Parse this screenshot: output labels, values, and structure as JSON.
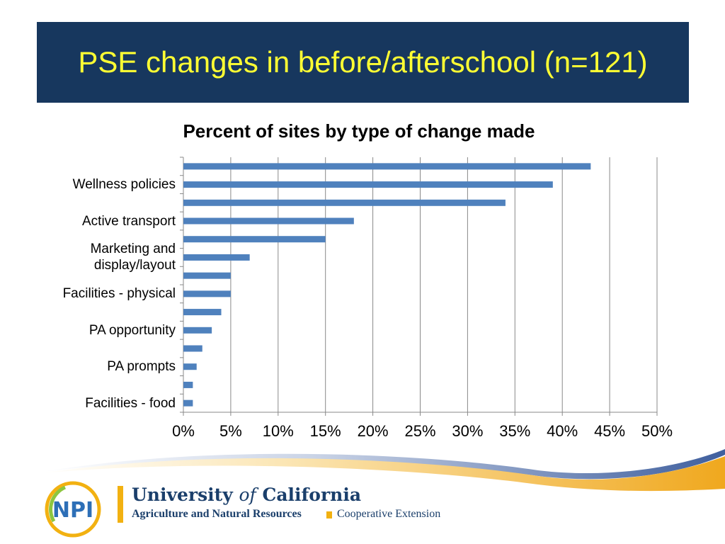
{
  "slide": {
    "title": "PSE changes in before/afterschool (n=121)"
  },
  "chart_data": {
    "type": "bar",
    "orientation": "horizontal",
    "title": "Percent of sites by type of change made",
    "xlabel": "",
    "ylabel": "",
    "xlim": [
      0,
      50
    ],
    "x_ticks": [
      "0%",
      "5%",
      "10%",
      "15%",
      "20%",
      "25%",
      "30%",
      "35%",
      "40%",
      "45%",
      "50%"
    ],
    "grid": true,
    "categories": [
      "",
      "Wellness policies",
      "",
      "Active transport",
      "",
      "Marketing and display/layout",
      "",
      "Facilities - physical",
      "",
      "PA opportunity",
      "",
      "PA prompts",
      "",
      "Facilities - food"
    ],
    "values": [
      43,
      39,
      34,
      18,
      15,
      7,
      5,
      5,
      4,
      3,
      2,
      1.4,
      1,
      1
    ],
    "bar_color": "#4f81bd"
  },
  "footer": {
    "uc_name_main": "University ",
    "uc_name_of": "of",
    "uc_name_end": " California",
    "uc_unit": "Agriculture and Natural Resources",
    "extension": "Cooperative Extension",
    "logo_text": "NPI"
  }
}
